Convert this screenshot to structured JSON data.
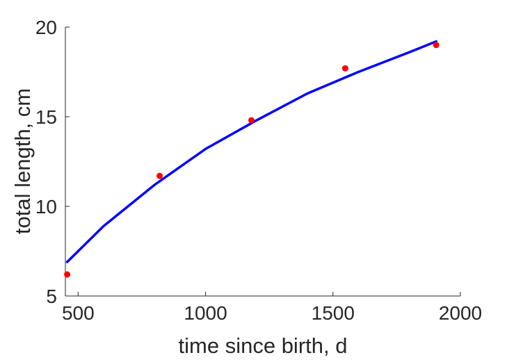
{
  "chart_data": {
    "type": "scatter",
    "xlabel": "time since birth, d",
    "ylabel": "total length, cm",
    "xlim": [
      450,
      2000
    ],
    "ylim": [
      5,
      20
    ],
    "xticks": [
      500,
      1000,
      1500,
      2000
    ],
    "yticks": [
      5,
      10,
      15,
      20
    ],
    "grid": false,
    "series": [
      {
        "kind": "points",
        "color": "#ff0000",
        "x": [
          457,
          820,
          1180,
          1548,
          1905
        ],
        "y": [
          6.2,
          11.7,
          14.8,
          17.7,
          19.0
        ]
      },
      {
        "kind": "line",
        "color": "#0000ff",
        "x": [
          457,
          600,
          800,
          1000,
          1200,
          1400,
          1600,
          1800,
          1905
        ],
        "y": [
          6.9,
          8.9,
          11.2,
          13.2,
          14.8,
          16.3,
          17.5,
          18.6,
          19.2
        ]
      }
    ]
  }
}
